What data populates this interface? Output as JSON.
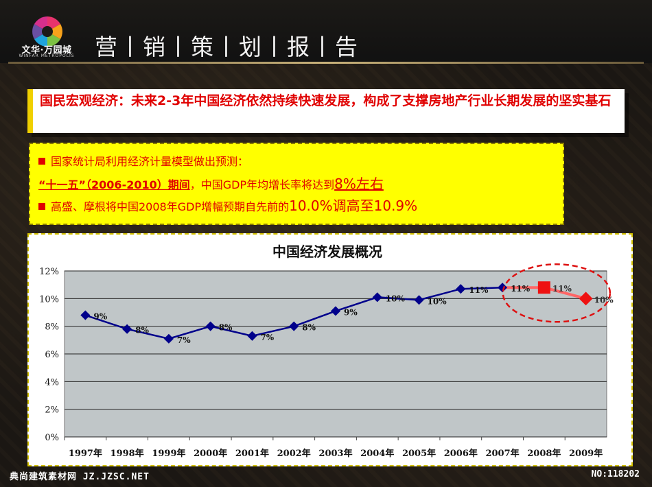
{
  "logo": {
    "name": "文华·万园城",
    "subtitle": "WINFAR METROPOLIS"
  },
  "header": {
    "title": "营丨销丨策丨划丨报丨告"
  },
  "headline": {
    "text": "国民宏观经济：未来2-3年中国经济依然持续快速发展，构成了支撑房地产行业长期发展的坚实基石"
  },
  "bullets": {
    "line1": "国家统计局利用经济计量模型做出预测：",
    "line2_a": "“十一五”（2006-2010）期间",
    "line2_b": "，中国GDP年均增长率将达到",
    "line2_c": "8%左右",
    "line3_a": "高盛、摩根将中国2008年GDP增幅预期自先前的",
    "line3_b": "10.0%调高至10.9%"
  },
  "colors": {
    "accent_red": "#e00000",
    "highlight_yellow": "#ffff00",
    "line_blue": "#00008b",
    "forecast_red": "#ff6666"
  },
  "chart_data": {
    "type": "line",
    "title": "中国经济发展概况",
    "categories": [
      "1997年",
      "1998年",
      "1999年",
      "2000年",
      "2001年",
      "2002年",
      "2003年",
      "2004年",
      "2005年",
      "2006年",
      "2007年",
      "2008年",
      "2009年"
    ],
    "values": [
      8.8,
      7.8,
      7.1,
      8.0,
      7.3,
      8.0,
      9.1,
      10.1,
      9.9,
      10.7,
      10.8,
      10.8,
      10.0
    ],
    "data_labels": [
      "9%",
      "8%",
      "7%",
      "8%",
      "7%",
      "8%",
      "9%",
      "10%",
      "10%",
      "11%",
      "11%",
      "11%",
      "10%"
    ],
    "forecast_from_index": 10,
    "yticks": [
      "0%",
      "2%",
      "4%",
      "6%",
      "8%",
      "10%",
      "12%"
    ],
    "ylim": [
      0,
      12
    ],
    "grid": true,
    "annotation": "dashed red circle around 2008–2009 forecast"
  },
  "footer": {
    "left": "典尚建筑素材网 JZ.JZSC.NET",
    "right": "NO:118202"
  }
}
